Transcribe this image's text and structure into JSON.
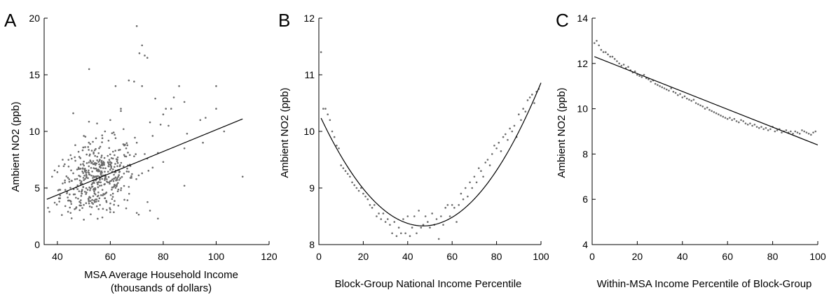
{
  "chart_data": [
    {
      "type": "scatter",
      "panel": "A",
      "title": "",
      "xlabel": [
        "MSA Average Household Income",
        "(thousands of dollars)"
      ],
      "ylabel": "Ambient NO2 (ppb)",
      "xlim": [
        35,
        120
      ],
      "ylim": [
        0,
        20
      ],
      "xticks": [
        40,
        60,
        80,
        100,
        120
      ],
      "yticks": [
        0,
        5,
        10,
        15,
        20
      ],
      "grid": false,
      "point_color": "#6b6b6b",
      "fit_line": {
        "x": [
          36,
          110
        ],
        "y": [
          4.0,
          11.1
        ]
      },
      "points": [
        [
          70,
          19.3
        ],
        [
          72,
          17.6
        ],
        [
          71,
          16.9
        ],
        [
          73,
          16.7
        ],
        [
          52,
          15.5
        ],
        [
          74,
          16.5
        ],
        [
          67,
          14.5
        ],
        [
          69,
          14.4
        ],
        [
          62,
          14.0
        ],
        [
          72,
          14.0
        ],
        [
          86,
          14.0
        ],
        [
          100,
          14.0
        ],
        [
          64,
          12.0
        ],
        [
          77,
          12.9
        ],
        [
          84,
          13.0
        ],
        [
          88,
          12.6
        ],
        [
          83,
          12.0
        ],
        [
          81,
          12.0
        ],
        [
          46,
          11.6
        ],
        [
          100,
          12.0
        ],
        [
          80,
          11.5
        ],
        [
          94,
          11.0
        ],
        [
          96,
          11.2
        ],
        [
          103,
          10.0
        ],
        [
          110,
          6.0
        ],
        [
          78,
          2.3
        ],
        [
          50,
          2.2
        ],
        [
          57,
          2.4
        ],
        [
          45,
          2.8
        ],
        [
          37,
          2.9
        ],
        [
          88,
          5.2
        ],
        [
          88,
          8.5
        ],
        [
          95,
          9.0
        ],
        [
          89,
          9.8
        ],
        [
          82,
          10.5
        ],
        [
          79,
          10.6
        ],
        [
          75,
          10.8
        ],
        [
          76,
          9.6
        ],
        [
          64,
          11.8
        ],
        [
          60,
          11.0
        ],
        [
          55,
          10.7
        ],
        [
          65,
          10.2
        ],
        [
          58,
          10.0
        ],
        [
          50,
          9.6
        ],
        [
          57,
          9.4
        ],
        [
          62,
          9.4
        ],
        [
          70,
          9.0
        ],
        [
          73,
          8.0
        ],
        [
          78,
          8.1
        ],
        [
          66,
          8.5
        ],
        [
          48,
          8.2
        ],
        [
          53,
          8.3
        ],
        [
          45,
          7.9
        ],
        [
          42,
          7.5
        ],
        [
          40,
          6.4
        ],
        [
          38,
          6.0
        ],
        [
          36,
          5.0
        ],
        [
          41,
          4.1
        ],
        [
          39,
          3.7
        ],
        [
          43,
          3.4
        ],
        [
          47,
          3.2
        ],
        [
          53,
          3.3
        ],
        [
          60,
          3.1
        ],
        [
          66,
          3.2
        ],
        [
          70,
          2.8
        ],
        [
          75,
          3.0
        ],
        [
          68,
          5.9
        ],
        [
          72,
          6.3
        ],
        [
          76,
          6.8
        ],
        [
          80,
          7.3
        ],
        [
          74,
          7.6
        ],
        [
          69,
          7.8
        ],
        [
          63,
          6.0
        ],
        [
          59,
          5.5
        ],
        [
          56,
          5.2
        ],
        [
          54,
          4.9
        ],
        [
          51,
          4.6
        ],
        [
          49,
          4.3
        ],
        [
          58,
          4.1
        ],
        [
          61,
          4.5
        ],
        [
          64,
          4.8
        ],
        [
          67,
          5.1
        ],
        [
          52,
          6.2
        ],
        [
          55,
          6.6
        ],
        [
          57,
          7.0
        ],
        [
          60,
          7.3
        ],
        [
          48,
          6.8
        ],
        [
          46,
          6.3
        ],
        [
          44,
          5.9
        ],
        [
          42,
          5.4
        ],
        [
          50,
          5.7
        ],
        [
          53,
          5.3
        ],
        [
          56,
          5.8
        ],
        [
          62,
          6.4
        ],
        [
          65,
          6.9
        ],
        [
          61,
          7.6
        ]
      ],
      "cloud_summary": {
        "center": [
          55,
          5.8
        ],
        "sx": 7,
        "sy": 1.6,
        "extra_points": 420
      }
    },
    {
      "type": "scatter",
      "panel": "B",
      "title": "",
      "xlabel": [
        "Block-Group National Income Percentile"
      ],
      "ylabel": "Ambient NO2 (ppb)",
      "xlim": [
        0,
        100
      ],
      "ylim": [
        8,
        12
      ],
      "xticks": [
        0,
        20,
        40,
        60,
        80,
        100
      ],
      "yticks": [
        8,
        9,
        10,
        11,
        12
      ],
      "grid": false,
      "point_color": "#6b6b6b",
      "fit_curve": {
        "form": "quadratic",
        "vertex_x": 47,
        "vertex_y": 8.33,
        "a": 0.0009
      },
      "points": [
        [
          1,
          11.4
        ],
        [
          2,
          10.4
        ],
        [
          3,
          10.4
        ],
        [
          4,
          10.3
        ],
        [
          5,
          10.2
        ],
        [
          6,
          10.0
        ],
        [
          7,
          9.9
        ],
        [
          8,
          9.75
        ],
        [
          9,
          9.7
        ],
        [
          10,
          9.4
        ],
        [
          11,
          9.35
        ],
        [
          12,
          9.3
        ],
        [
          13,
          9.25
        ],
        [
          14,
          9.2
        ],
        [
          15,
          9.1
        ],
        [
          16,
          9.05
        ],
        [
          17,
          9.0
        ],
        [
          18,
          8.95
        ],
        [
          19,
          9.0
        ],
        [
          20,
          8.9
        ],
        [
          21,
          8.85
        ],
        [
          22,
          8.8
        ],
        [
          23,
          8.7
        ],
        [
          24,
          8.65
        ],
        [
          25,
          8.7
        ],
        [
          26,
          8.5
        ],
        [
          27,
          8.55
        ],
        [
          28,
          8.45
        ],
        [
          29,
          8.55
        ],
        [
          30,
          8.4
        ],
        [
          31,
          8.45
        ],
        [
          32,
          8.35
        ],
        [
          33,
          8.2
        ],
        [
          34,
          8.4
        ],
        [
          35,
          8.15
        ],
        [
          36,
          8.3
        ],
        [
          37,
          8.2
        ],
        [
          38,
          8.45
        ],
        [
          39,
          8.2
        ],
        [
          40,
          8.5
        ],
        [
          41,
          8.15
        ],
        [
          42,
          8.3
        ],
        [
          43,
          8.5
        ],
        [
          44,
          8.2
        ],
        [
          45,
          8.6
        ],
        [
          46,
          8.3
        ],
        [
          47,
          8.35
        ],
        [
          48,
          8.5
        ],
        [
          49,
          8.4
        ],
        [
          50,
          8.3
        ],
        [
          51,
          8.55
        ],
        [
          52,
          8.35
        ],
        [
          53,
          8.45
        ],
        [
          54,
          8.1
        ],
        [
          55,
          8.5
        ],
        [
          56,
          8.35
        ],
        [
          57,
          8.65
        ],
        [
          58,
          8.7
        ],
        [
          59,
          8.5
        ],
        [
          60,
          8.7
        ],
        [
          61,
          8.65
        ],
        [
          62,
          8.4
        ],
        [
          63,
          8.7
        ],
        [
          64,
          8.9
        ],
        [
          65,
          8.8
        ],
        [
          66,
          9.0
        ],
        [
          67,
          8.85
        ],
        [
          68,
          9.1
        ],
        [
          69,
          9.0
        ],
        [
          70,
          9.2
        ],
        [
          71,
          9.1
        ],
        [
          72,
          9.35
        ],
        [
          73,
          9.3
        ],
        [
          74,
          9.2
        ],
        [
          75,
          9.45
        ],
        [
          76,
          9.5
        ],
        [
          77,
          9.4
        ],
        [
          78,
          9.6
        ],
        [
          79,
          9.75
        ],
        [
          80,
          9.7
        ],
        [
          81,
          9.8
        ],
        [
          82,
          9.65
        ],
        [
          83,
          9.9
        ],
        [
          84,
          9.95
        ],
        [
          85,
          9.85
        ],
        [
          86,
          10.05
        ],
        [
          87,
          10.0
        ],
        [
          88,
          10.1
        ],
        [
          89,
          9.9
        ],
        [
          90,
          10.3
        ],
        [
          91,
          10.2
        ],
        [
          92,
          10.4
        ],
        [
          93,
          10.35
        ],
        [
          94,
          10.55
        ],
        [
          95,
          10.6
        ],
        [
          96,
          10.65
        ],
        [
          97,
          10.5
        ],
        [
          98,
          10.7
        ],
        [
          99,
          10.75
        ]
      ]
    },
    {
      "type": "scatter",
      "panel": "C",
      "title": "",
      "xlabel": [
        "Within-MSA Income Percentile of Block-Group"
      ],
      "ylabel": "Ambient NO2 (ppb)",
      "xlim": [
        0,
        100
      ],
      "ylim": [
        4,
        14
      ],
      "xticks": [
        0,
        20,
        40,
        60,
        80,
        100
      ],
      "yticks": [
        4,
        6,
        8,
        10,
        12,
        14
      ],
      "grid": false,
      "point_color": "#6b6b6b",
      "fit_line": {
        "x": [
          1,
          100
        ],
        "y": [
          12.3,
          8.4
        ]
      },
      "points": [
        [
          1,
          12.9
        ],
        [
          2,
          13.0
        ],
        [
          3,
          12.8
        ],
        [
          4,
          12.6
        ],
        [
          5,
          12.5
        ],
        [
          6,
          12.5
        ],
        [
          7,
          12.4
        ],
        [
          8,
          12.3
        ],
        [
          9,
          12.3
        ],
        [
          10,
          12.2
        ],
        [
          11,
          12.1
        ],
        [
          12,
          12.0
        ],
        [
          13,
          11.9
        ],
        [
          14,
          11.95
        ],
        [
          15,
          11.8
        ],
        [
          16,
          11.85
        ],
        [
          17,
          11.7
        ],
        [
          18,
          11.6
        ],
        [
          19,
          11.65
        ],
        [
          20,
          11.5
        ],
        [
          21,
          11.45
        ],
        [
          22,
          11.4
        ],
        [
          23,
          11.5
        ],
        [
          24,
          11.35
        ],
        [
          25,
          11.3
        ],
        [
          26,
          11.2
        ],
        [
          27,
          11.25
        ],
        [
          28,
          11.1
        ],
        [
          29,
          11.05
        ],
        [
          30,
          11.0
        ],
        [
          31,
          10.95
        ],
        [
          32,
          10.9
        ],
        [
          33,
          10.85
        ],
        [
          34,
          10.8
        ],
        [
          35,
          10.9
        ],
        [
          36,
          10.75
        ],
        [
          37,
          10.7
        ],
        [
          38,
          10.6
        ],
        [
          39,
          10.65
        ],
        [
          40,
          10.5
        ],
        [
          41,
          10.55
        ],
        [
          42,
          10.45
        ],
        [
          43,
          10.4
        ],
        [
          44,
          10.35
        ],
        [
          45,
          10.4
        ],
        [
          46,
          10.25
        ],
        [
          47,
          10.2
        ],
        [
          48,
          10.15
        ],
        [
          49,
          10.1
        ],
        [
          50,
          10.0
        ],
        [
          51,
          10.05
        ],
        [
          52,
          9.95
        ],
        [
          53,
          9.9
        ],
        [
          54,
          9.85
        ],
        [
          55,
          9.8
        ],
        [
          56,
          9.75
        ],
        [
          57,
          9.7
        ],
        [
          58,
          9.65
        ],
        [
          59,
          9.6
        ],
        [
          60,
          9.55
        ],
        [
          61,
          9.6
        ],
        [
          62,
          9.5
        ],
        [
          63,
          9.55
        ],
        [
          64,
          9.45
        ],
        [
          65,
          9.4
        ],
        [
          66,
          9.5
        ],
        [
          67,
          9.45
        ],
        [
          68,
          9.35
        ],
        [
          69,
          9.3
        ],
        [
          70,
          9.35
        ],
        [
          71,
          9.25
        ],
        [
          72,
          9.3
        ],
        [
          73,
          9.2
        ],
        [
          74,
          9.15
        ],
        [
          75,
          9.2
        ],
        [
          76,
          9.1
        ],
        [
          77,
          9.15
        ],
        [
          78,
          9.05
        ],
        [
          79,
          9.1
        ],
        [
          80,
          9.2
        ],
        [
          81,
          9.0
        ],
        [
          82,
          9.05
        ],
        [
          83,
          9.1
        ],
        [
          84,
          8.95
        ],
        [
          85,
          9.0
        ],
        [
          86,
          9.05
        ],
        [
          87,
          8.95
        ],
        [
          88,
          9.0
        ],
        [
          89,
          8.9
        ],
        [
          90,
          9.0
        ],
        [
          91,
          8.95
        ],
        [
          92,
          8.9
        ],
        [
          93,
          9.05
        ],
        [
          94,
          9.0
        ],
        [
          95,
          8.95
        ],
        [
          96,
          8.9
        ],
        [
          97,
          8.85
        ],
        [
          98,
          8.95
        ],
        [
          99,
          9.0
        ]
      ]
    }
  ]
}
